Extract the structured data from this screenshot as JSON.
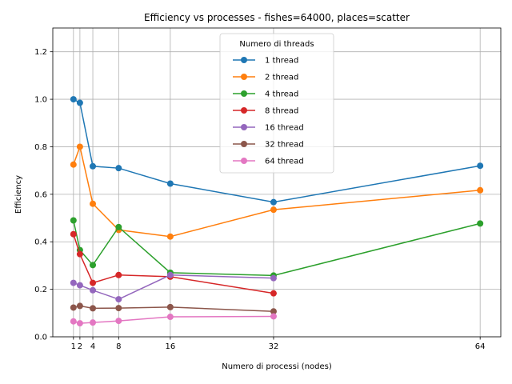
{
  "chart_data": {
    "type": "line",
    "title": "Efficiency vs processes - fishes=64000, places=scatter",
    "xlabel": "Numero di processi (nodes)",
    "ylabel": "Efficiency",
    "x": [
      1,
      2,
      4,
      8,
      16,
      32,
      64
    ],
    "xticks": [
      "1",
      "2",
      "4",
      "8",
      "16",
      "32",
      "64"
    ],
    "xlim": [
      -2.2,
      67.2
    ],
    "ylim": [
      0,
      1.3
    ],
    "yticks": [
      "0.0",
      "0.2",
      "0.4",
      "0.6",
      "0.8",
      "1.0",
      "1.2"
    ],
    "grid": true,
    "legend_title": "Numero di threads",
    "legend_position": "top-center",
    "series": [
      {
        "name": "1 thread",
        "color": "#1f77b4",
        "points": [
          [
            1,
            1.0
          ],
          [
            2,
            0.985
          ],
          [
            4,
            0.718
          ],
          [
            8,
            0.71
          ],
          [
            16,
            0.645
          ],
          [
            32,
            0.567
          ],
          [
            64,
            0.72
          ]
        ]
      },
      {
        "name": "2 thread",
        "color": "#ff7f0e",
        "points": [
          [
            1,
            0.725
          ],
          [
            2,
            0.8
          ],
          [
            4,
            0.56
          ],
          [
            8,
            0.45
          ],
          [
            16,
            0.422
          ],
          [
            32,
            0.535
          ],
          [
            64,
            0.617
          ]
        ]
      },
      {
        "name": "4 thread",
        "color": "#2ca02c",
        "points": [
          [
            1,
            0.49
          ],
          [
            2,
            0.365
          ],
          [
            4,
            0.302
          ],
          [
            8,
            0.462
          ],
          [
            16,
            0.27
          ],
          [
            32,
            0.258
          ],
          [
            64,
            0.477
          ]
        ]
      },
      {
        "name": "8 thread",
        "color": "#d62728",
        "points": [
          [
            1,
            0.432
          ],
          [
            2,
            0.348
          ],
          [
            4,
            0.227
          ],
          [
            8,
            0.26
          ],
          [
            16,
            0.253
          ],
          [
            32,
            0.183
          ]
        ]
      },
      {
        "name": "16 thread",
        "color": "#9467bd",
        "points": [
          [
            1,
            0.227
          ],
          [
            2,
            0.217
          ],
          [
            4,
            0.196
          ],
          [
            8,
            0.158
          ],
          [
            16,
            0.26
          ],
          [
            32,
            0.247
          ]
        ]
      },
      {
        "name": "32 thread",
        "color": "#8c564b",
        "points": [
          [
            1,
            0.123
          ],
          [
            2,
            0.13
          ],
          [
            4,
            0.12
          ],
          [
            8,
            0.121
          ],
          [
            16,
            0.125
          ],
          [
            32,
            0.107
          ]
        ]
      },
      {
        "name": "64 thread",
        "color": "#e377c2",
        "points": [
          [
            1,
            0.065
          ],
          [
            2,
            0.057
          ],
          [
            4,
            0.06
          ],
          [
            8,
            0.067
          ],
          [
            16,
            0.084
          ],
          [
            32,
            0.086
          ]
        ]
      }
    ]
  }
}
